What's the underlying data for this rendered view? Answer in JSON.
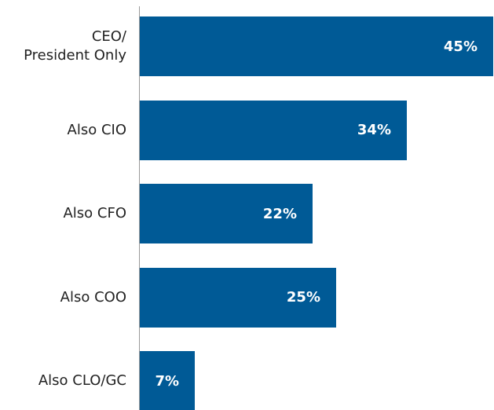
{
  "chart_data": {
    "type": "bar",
    "orientation": "horizontal",
    "categories": [
      "CEO/\nPresident Only",
      "Also CIO",
      "Also CFO",
      "Also COO",
      "Also CLO/GC"
    ],
    "values": [
      45,
      34,
      22,
      25,
      7
    ],
    "value_labels": [
      "45%",
      "34%",
      "22%",
      "25%",
      "7%"
    ],
    "color": "#005a96",
    "xlim": [
      0,
      45
    ]
  }
}
